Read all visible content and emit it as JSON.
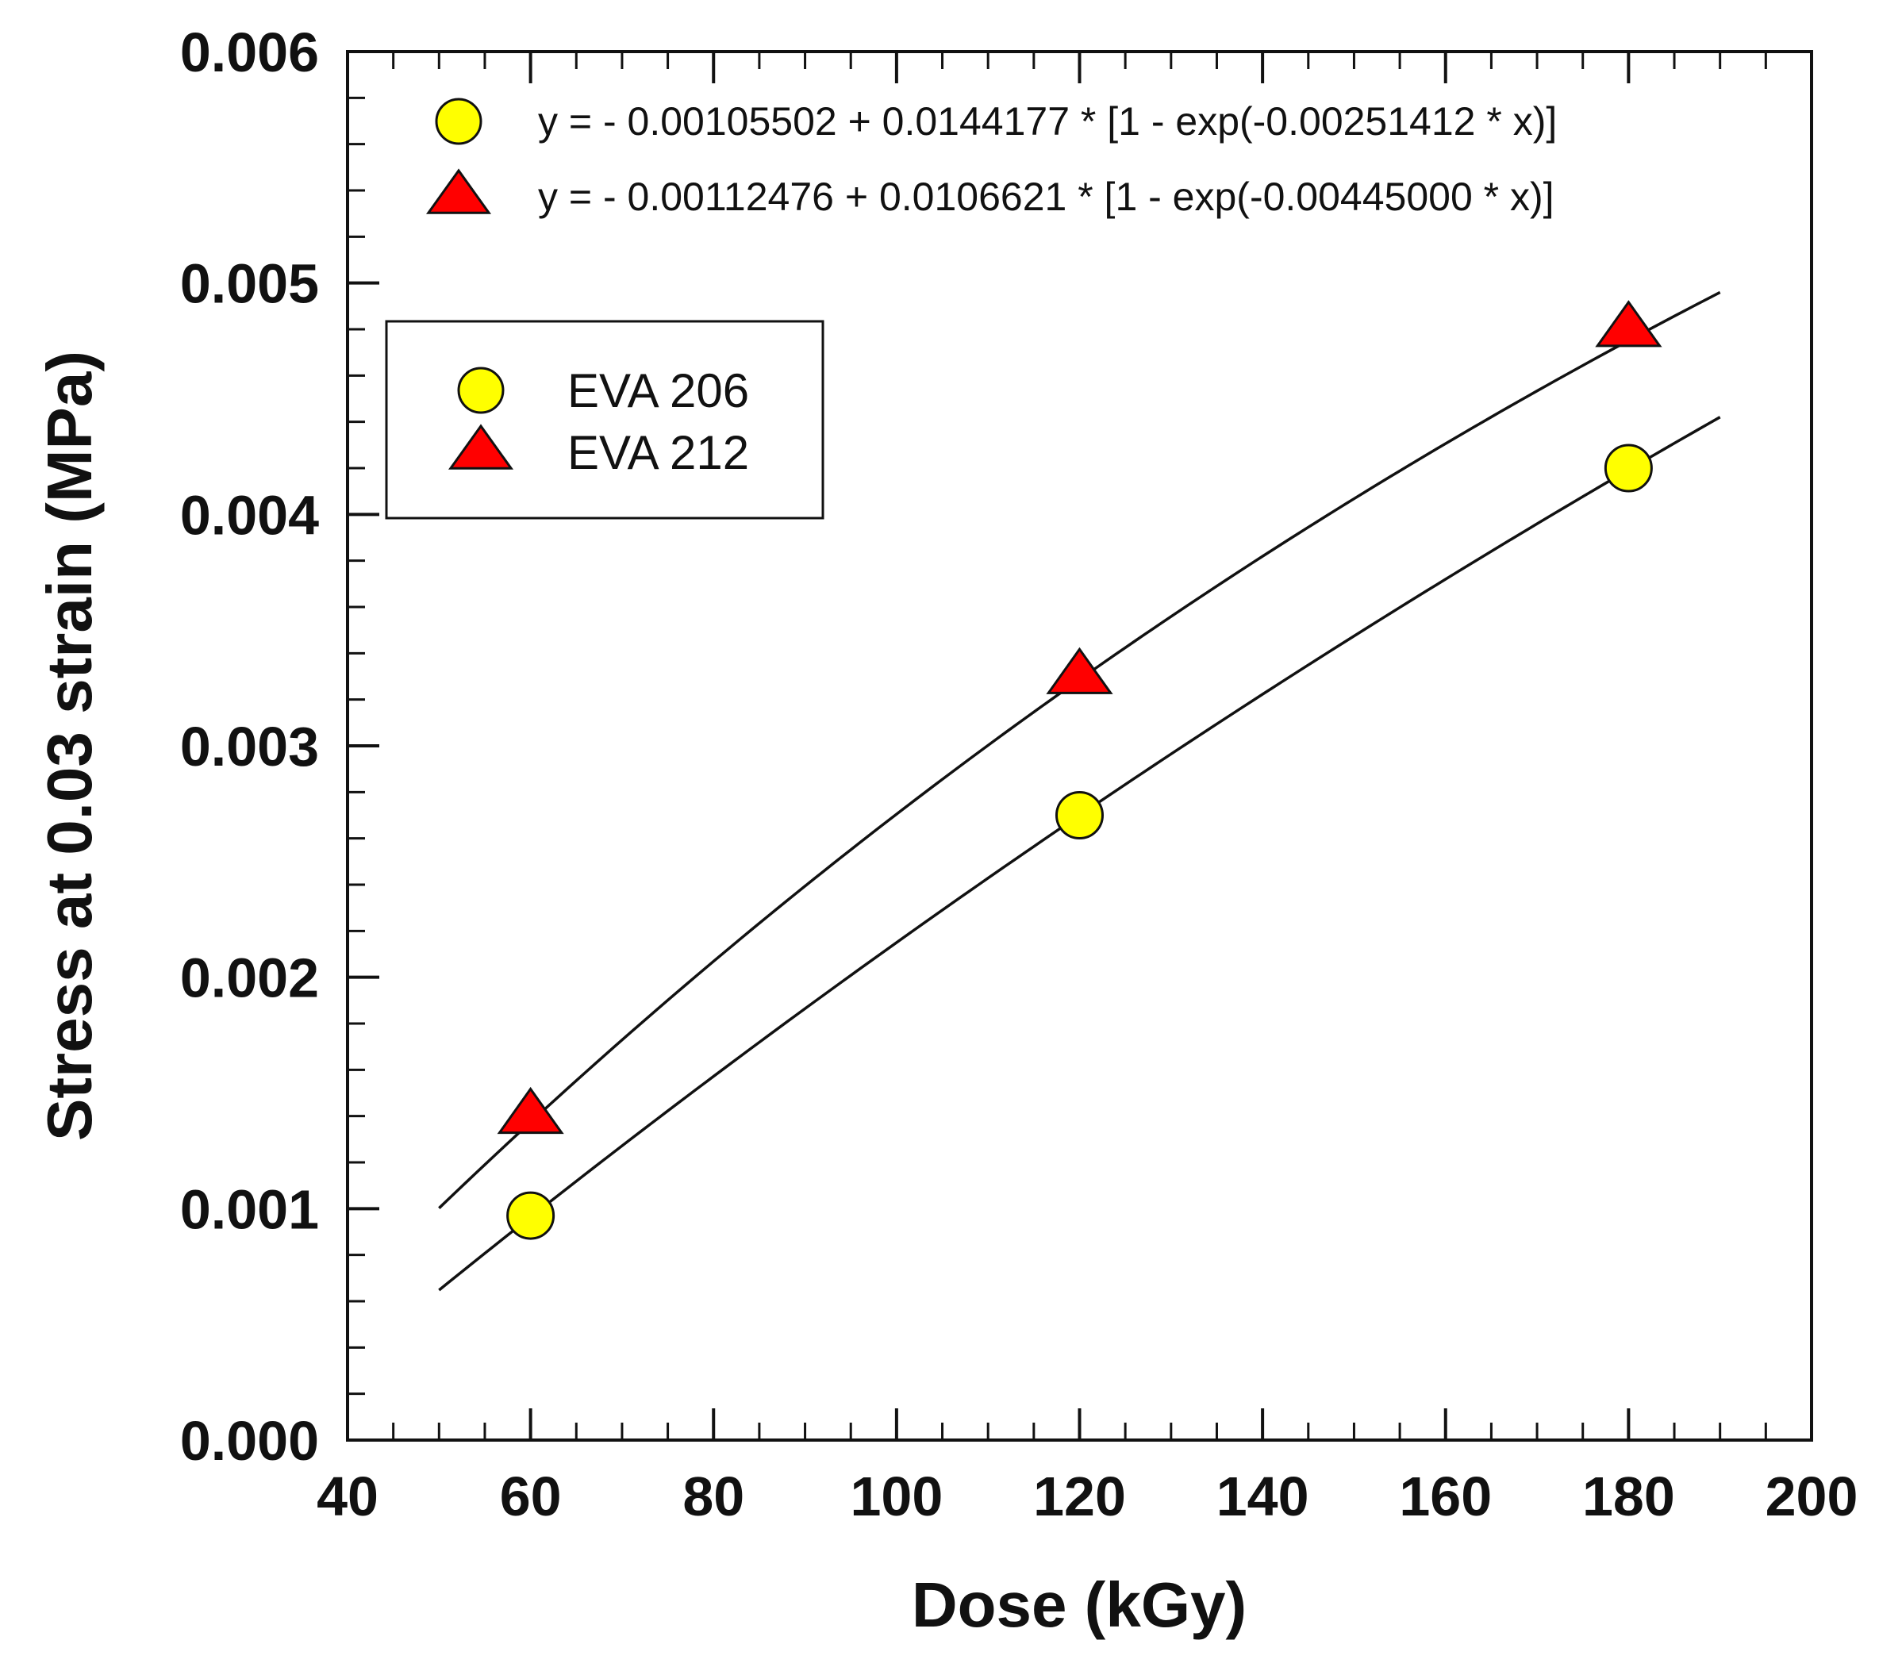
{
  "chart_data": {
    "type": "scatter",
    "title": "",
    "xlabel": "Dose (kGy)",
    "ylabel": "Stress at 0.03 strain (MPa)",
    "xlim": [
      40,
      200
    ],
    "ylim": [
      0,
      0.006
    ],
    "x_ticks": [
      40,
      60,
      80,
      100,
      120,
      140,
      160,
      180,
      200
    ],
    "x_tick_labels": [
      "40",
      "60",
      "80",
      "100",
      "120",
      "140",
      "160",
      "180",
      "200"
    ],
    "x_minor_step": 5,
    "y_ticks": [
      0,
      0.001,
      0.002,
      0.003,
      0.004,
      0.005,
      0.006
    ],
    "y_tick_labels": [
      "0.000",
      "0.001",
      "0.002",
      "0.003",
      "0.004",
      "0.005",
      "0.006"
    ],
    "y_minor_step": 0.0002,
    "grid": false,
    "legend_position": "top-left",
    "series": [
      {
        "name": "EVA 206",
        "marker": "circle",
        "color": "#ffff00",
        "x": [
          60,
          120,
          180
        ],
        "y": [
          0.00097,
          0.0027,
          0.0042
        ],
        "fit": {
          "equation": "y = - 0.00105502 + 0.0144177 * [1 - exp(-0.00251412 * x)]",
          "a": -0.00105502,
          "b": 0.0144177,
          "c": 0.00251412,
          "x_range": [
            50,
            190
          ]
        }
      },
      {
        "name": "EVA 212",
        "marker": "triangle",
        "color": "#ff0000",
        "x": [
          60,
          120,
          180
        ],
        "y": [
          0.0014,
          0.0033,
          0.0048
        ],
        "fit": {
          "equation": "y = - 0.00112476 + 0.0106621 * [1 - exp(-0.00445000 * x)]",
          "a": -0.00112476,
          "b": 0.0106621,
          "c": 0.00445,
          "x_range": [
            50,
            190
          ]
        }
      }
    ]
  }
}
